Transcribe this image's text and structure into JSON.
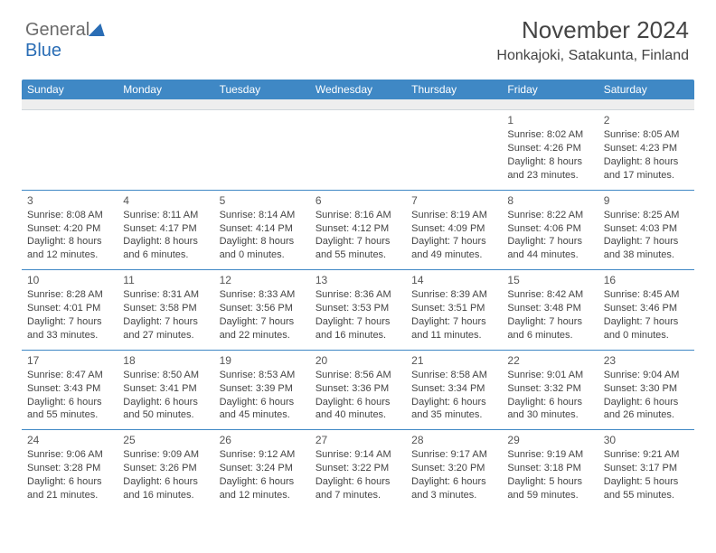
{
  "logo": {
    "line1": "General",
    "line2": "Blue"
  },
  "header": {
    "title": "November 2024",
    "location": "Honkajoki, Satakunta, Finland"
  },
  "style": {
    "header_bg": "#3f88c5",
    "header_text": "#ffffff",
    "divider_color": "#3f88c5",
    "body_text": "#444444",
    "background": "#ffffff",
    "row_sep_bg": "#eeeeee",
    "font": "Arial",
    "title_fontsize": 26,
    "location_fontsize": 16,
    "dayhead_fontsize": 12,
    "cell_fontsize": 11
  },
  "day_names": [
    "Sunday",
    "Monday",
    "Tuesday",
    "Wednesday",
    "Thursday",
    "Friday",
    "Saturday"
  ],
  "weeks": [
    [
      null,
      null,
      null,
      null,
      null,
      {
        "n": "1",
        "sunrise": "Sunrise: 8:02 AM",
        "sunset": "Sunset: 4:26 PM",
        "day1": "Daylight: 8 hours",
        "day2": "and 23 minutes."
      },
      {
        "n": "2",
        "sunrise": "Sunrise: 8:05 AM",
        "sunset": "Sunset: 4:23 PM",
        "day1": "Daylight: 8 hours",
        "day2": "and 17 minutes."
      }
    ],
    [
      {
        "n": "3",
        "sunrise": "Sunrise: 8:08 AM",
        "sunset": "Sunset: 4:20 PM",
        "day1": "Daylight: 8 hours",
        "day2": "and 12 minutes."
      },
      {
        "n": "4",
        "sunrise": "Sunrise: 8:11 AM",
        "sunset": "Sunset: 4:17 PM",
        "day1": "Daylight: 8 hours",
        "day2": "and 6 minutes."
      },
      {
        "n": "5",
        "sunrise": "Sunrise: 8:14 AM",
        "sunset": "Sunset: 4:14 PM",
        "day1": "Daylight: 8 hours",
        "day2": "and 0 minutes."
      },
      {
        "n": "6",
        "sunrise": "Sunrise: 8:16 AM",
        "sunset": "Sunset: 4:12 PM",
        "day1": "Daylight: 7 hours",
        "day2": "and 55 minutes."
      },
      {
        "n": "7",
        "sunrise": "Sunrise: 8:19 AM",
        "sunset": "Sunset: 4:09 PM",
        "day1": "Daylight: 7 hours",
        "day2": "and 49 minutes."
      },
      {
        "n": "8",
        "sunrise": "Sunrise: 8:22 AM",
        "sunset": "Sunset: 4:06 PM",
        "day1": "Daylight: 7 hours",
        "day2": "and 44 minutes."
      },
      {
        "n": "9",
        "sunrise": "Sunrise: 8:25 AM",
        "sunset": "Sunset: 4:03 PM",
        "day1": "Daylight: 7 hours",
        "day2": "and 38 minutes."
      }
    ],
    [
      {
        "n": "10",
        "sunrise": "Sunrise: 8:28 AM",
        "sunset": "Sunset: 4:01 PM",
        "day1": "Daylight: 7 hours",
        "day2": "and 33 minutes."
      },
      {
        "n": "11",
        "sunrise": "Sunrise: 8:31 AM",
        "sunset": "Sunset: 3:58 PM",
        "day1": "Daylight: 7 hours",
        "day2": "and 27 minutes."
      },
      {
        "n": "12",
        "sunrise": "Sunrise: 8:33 AM",
        "sunset": "Sunset: 3:56 PM",
        "day1": "Daylight: 7 hours",
        "day2": "and 22 minutes."
      },
      {
        "n": "13",
        "sunrise": "Sunrise: 8:36 AM",
        "sunset": "Sunset: 3:53 PM",
        "day1": "Daylight: 7 hours",
        "day2": "and 16 minutes."
      },
      {
        "n": "14",
        "sunrise": "Sunrise: 8:39 AM",
        "sunset": "Sunset: 3:51 PM",
        "day1": "Daylight: 7 hours",
        "day2": "and 11 minutes."
      },
      {
        "n": "15",
        "sunrise": "Sunrise: 8:42 AM",
        "sunset": "Sunset: 3:48 PM",
        "day1": "Daylight: 7 hours",
        "day2": "and 6 minutes."
      },
      {
        "n": "16",
        "sunrise": "Sunrise: 8:45 AM",
        "sunset": "Sunset: 3:46 PM",
        "day1": "Daylight: 7 hours",
        "day2": "and 0 minutes."
      }
    ],
    [
      {
        "n": "17",
        "sunrise": "Sunrise: 8:47 AM",
        "sunset": "Sunset: 3:43 PM",
        "day1": "Daylight: 6 hours",
        "day2": "and 55 minutes."
      },
      {
        "n": "18",
        "sunrise": "Sunrise: 8:50 AM",
        "sunset": "Sunset: 3:41 PM",
        "day1": "Daylight: 6 hours",
        "day2": "and 50 minutes."
      },
      {
        "n": "19",
        "sunrise": "Sunrise: 8:53 AM",
        "sunset": "Sunset: 3:39 PM",
        "day1": "Daylight: 6 hours",
        "day2": "and 45 minutes."
      },
      {
        "n": "20",
        "sunrise": "Sunrise: 8:56 AM",
        "sunset": "Sunset: 3:36 PM",
        "day1": "Daylight: 6 hours",
        "day2": "and 40 minutes."
      },
      {
        "n": "21",
        "sunrise": "Sunrise: 8:58 AM",
        "sunset": "Sunset: 3:34 PM",
        "day1": "Daylight: 6 hours",
        "day2": "and 35 minutes."
      },
      {
        "n": "22",
        "sunrise": "Sunrise: 9:01 AM",
        "sunset": "Sunset: 3:32 PM",
        "day1": "Daylight: 6 hours",
        "day2": "and 30 minutes."
      },
      {
        "n": "23",
        "sunrise": "Sunrise: 9:04 AM",
        "sunset": "Sunset: 3:30 PM",
        "day1": "Daylight: 6 hours",
        "day2": "and 26 minutes."
      }
    ],
    [
      {
        "n": "24",
        "sunrise": "Sunrise: 9:06 AM",
        "sunset": "Sunset: 3:28 PM",
        "day1": "Daylight: 6 hours",
        "day2": "and 21 minutes."
      },
      {
        "n": "25",
        "sunrise": "Sunrise: 9:09 AM",
        "sunset": "Sunset: 3:26 PM",
        "day1": "Daylight: 6 hours",
        "day2": "and 16 minutes."
      },
      {
        "n": "26",
        "sunrise": "Sunrise: 9:12 AM",
        "sunset": "Sunset: 3:24 PM",
        "day1": "Daylight: 6 hours",
        "day2": "and 12 minutes."
      },
      {
        "n": "27",
        "sunrise": "Sunrise: 9:14 AM",
        "sunset": "Sunset: 3:22 PM",
        "day1": "Daylight: 6 hours",
        "day2": "and 7 minutes."
      },
      {
        "n": "28",
        "sunrise": "Sunrise: 9:17 AM",
        "sunset": "Sunset: 3:20 PM",
        "day1": "Daylight: 6 hours",
        "day2": "and 3 minutes."
      },
      {
        "n": "29",
        "sunrise": "Sunrise: 9:19 AM",
        "sunset": "Sunset: 3:18 PM",
        "day1": "Daylight: 5 hours",
        "day2": "and 59 minutes."
      },
      {
        "n": "30",
        "sunrise": "Sunrise: 9:21 AM",
        "sunset": "Sunset: 3:17 PM",
        "day1": "Daylight: 5 hours",
        "day2": "and 55 minutes."
      }
    ]
  ]
}
